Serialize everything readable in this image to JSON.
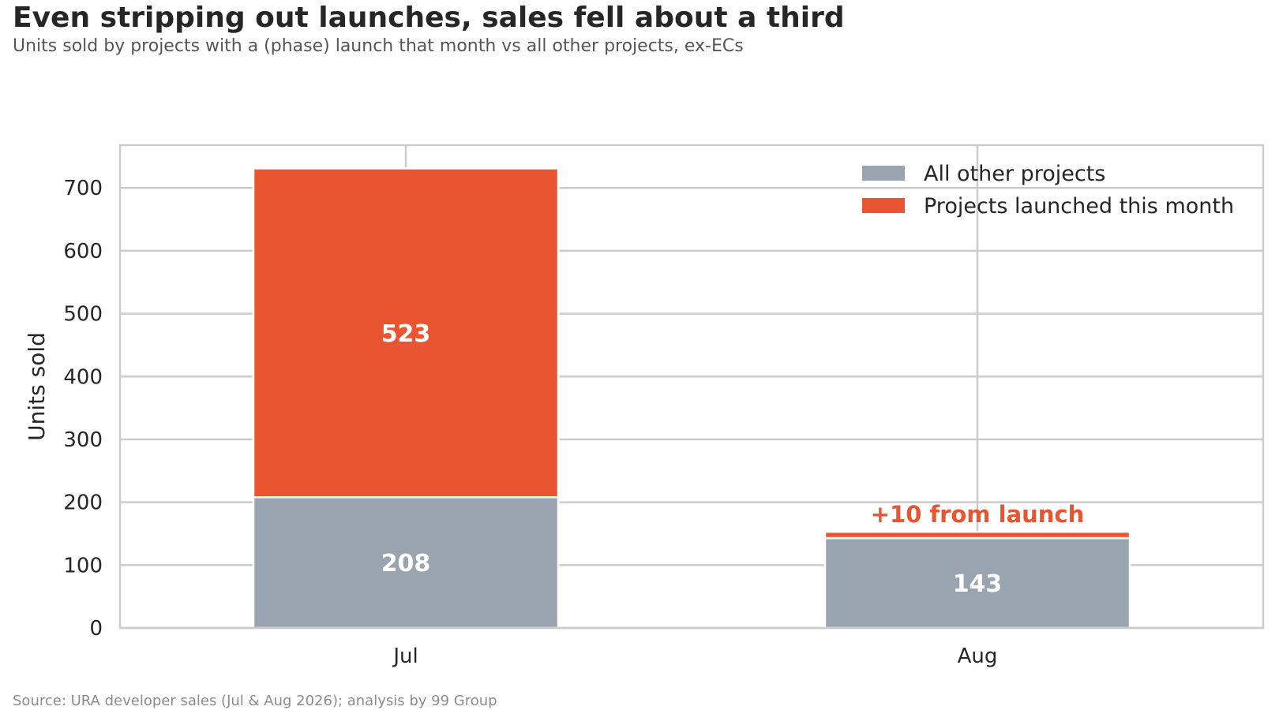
{
  "header": {
    "title": "Even stripping out launches, sales fell about a third",
    "subtitle": "Units sold by projects with a (phase) launch that month vs all other projects, ex-ECs"
  },
  "footer": {
    "source": "Source: URA developer sales (Jul & Aug 2026); analysis by 99 Group"
  },
  "colors": {
    "other": "#9aa4b1",
    "launched": "#e85530",
    "grid": "#cccccc",
    "text": "#262626"
  },
  "chart_data": {
    "type": "bar",
    "stacked": true,
    "categories": [
      "Jul",
      "Aug"
    ],
    "series": [
      {
        "name": "All other projects",
        "values": [
          208,
          143
        ],
        "labels": [
          "208",
          "143"
        ]
      },
      {
        "name": "Projects launched this month",
        "values": [
          523,
          10
        ],
        "labels": [
          "523",
          ""
        ]
      }
    ],
    "annotation": {
      "category": "Aug",
      "text": "+10 from launch"
    },
    "title": "Even stripping out launches, sales fell about a third",
    "xlabel": "",
    "ylabel": "Units sold",
    "ylim": [
      0,
      768
    ],
    "yticks": [
      0,
      100,
      200,
      300,
      400,
      500,
      600,
      700
    ],
    "grid": true,
    "legend_position": "top-right"
  }
}
